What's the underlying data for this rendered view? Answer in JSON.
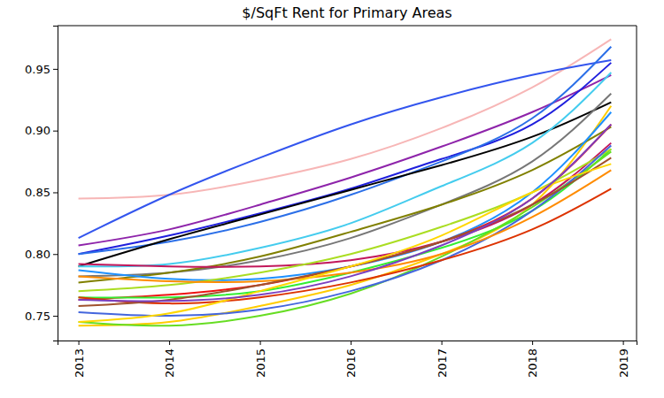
{
  "chart_data": {
    "type": "line",
    "title": "$/SqFt Rent for Primary Areas",
    "x": [
      2013,
      2014,
      2015,
      2016,
      2017,
      2018,
      2018.87
    ],
    "xlim": [
      2012.77,
      2019.15
    ],
    "xticks": [
      2013,
      2014,
      2015,
      2016,
      2017,
      2018,
      2019
    ],
    "ylim": [
      0.73,
      0.985
    ],
    "yticks": [
      0.75,
      {
        "value": 0.8,
        "label": "0.80"
      },
      0.85,
      {
        "value": 0.9,
        "label": "0.90"
      },
      0.95
    ],
    "grid": false,
    "series": [
      {
        "color": "#f7b6b6",
        "values": [
          0.845,
          0.848,
          0.86,
          0.877,
          0.902,
          0.935,
          0.974
        ]
      },
      {
        "color": "#3355ee",
        "values": [
          0.813,
          0.848,
          0.878,
          0.905,
          0.927,
          0.945,
          0.957
        ]
      },
      {
        "color": "#8e24aa",
        "values": [
          0.807,
          0.82,
          0.84,
          0.862,
          0.887,
          0.915,
          0.945
        ]
      },
      {
        "color": "#1f1fdd",
        "values": [
          0.8,
          0.815,
          0.833,
          0.853,
          0.877,
          0.905,
          0.955
        ]
      },
      {
        "color": "#2b6fe8",
        "values": [
          0.8,
          0.81,
          0.826,
          0.848,
          0.875,
          0.91,
          0.968
        ]
      },
      {
        "color": "#000000",
        "values": [
          0.79,
          0.812,
          0.832,
          0.852,
          0.872,
          0.895,
          0.923
        ]
      },
      {
        "color": "#44ccee",
        "values": [
          0.79,
          0.792,
          0.805,
          0.825,
          0.855,
          0.89,
          0.947
        ]
      },
      {
        "color": "#777777",
        "values": [
          0.782,
          0.785,
          0.795,
          0.813,
          0.84,
          0.875,
          0.93
        ]
      },
      {
        "color": "#ffcc00",
        "values": [
          0.742,
          0.745,
          0.758,
          0.775,
          0.8,
          0.84,
          0.92
        ]
      },
      {
        "color": "#808000",
        "values": [
          0.777,
          0.785,
          0.798,
          0.818,
          0.84,
          0.868,
          0.903
        ]
      },
      {
        "color": "#1e90ff",
        "values": [
          0.787,
          0.78,
          0.78,
          0.79,
          0.81,
          0.85,
          0.915
        ]
      },
      {
        "color": "#ee1111",
        "values": [
          0.763,
          0.767,
          0.775,
          0.79,
          0.81,
          0.845,
          0.905
        ]
      },
      {
        "color": "#c2185b",
        "values": [
          0.792,
          0.79,
          0.79,
          0.795,
          0.81,
          0.84,
          0.89
        ]
      },
      {
        "color": "#33ee33",
        "values": [
          0.765,
          0.765,
          0.77,
          0.785,
          0.805,
          0.835,
          0.885
        ]
      },
      {
        "color": "#aadd22",
        "values": [
          0.77,
          0.775,
          0.785,
          0.8,
          0.822,
          0.85,
          0.885
        ]
      },
      {
        "color": "#66dd22",
        "values": [
          0.745,
          0.742,
          0.75,
          0.768,
          0.798,
          0.838,
          0.883
        ]
      },
      {
        "color": "#4466dd",
        "values": [
          0.753,
          0.75,
          0.755,
          0.77,
          0.795,
          0.835,
          0.888
        ]
      },
      {
        "color": "#ff8c00",
        "values": [
          0.782,
          0.778,
          0.778,
          0.785,
          0.8,
          0.83,
          0.868
        ]
      },
      {
        "color": "#dd3300",
        "values": [
          0.765,
          0.76,
          0.765,
          0.777,
          0.795,
          0.82,
          0.853
        ]
      },
      {
        "color": "#a0522d",
        "values": [
          0.758,
          0.763,
          0.775,
          0.79,
          0.81,
          0.84,
          0.878
        ]
      },
      {
        "color": "#ffd700",
        "values": [
          0.745,
          0.752,
          0.77,
          0.79,
          0.815,
          0.85,
          0.873
        ]
      },
      {
        "color": "#7b3fbf",
        "values": [
          0.763,
          0.762,
          0.767,
          0.782,
          0.807,
          0.845,
          0.905
        ]
      }
    ]
  }
}
